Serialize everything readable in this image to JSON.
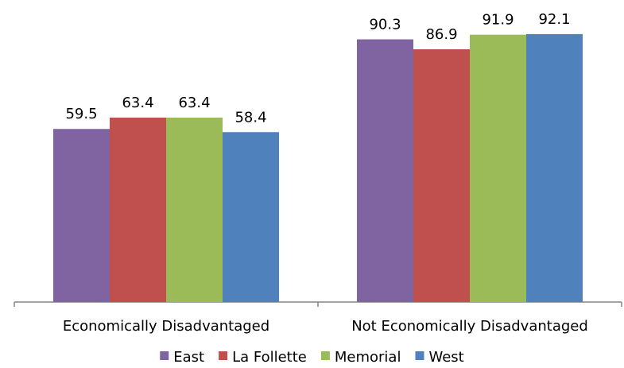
{
  "chart_data": {
    "type": "bar",
    "categories": [
      "Economically Disadvantaged",
      "Not Economically Disadvantaged"
    ],
    "series": [
      {
        "name": "East",
        "color": "#8064A2",
        "values": [
          59.5,
          90.3
        ]
      },
      {
        "name": "La Follette",
        "color": "#C0504D",
        "values": [
          63.4,
          86.9
        ]
      },
      {
        "name": "Memorial",
        "color": "#9BBB59",
        "values": [
          63.4,
          91.9
        ]
      },
      {
        "name": "West",
        "color": "#4F81BD",
        "values": [
          58.4,
          92.1
        ]
      }
    ],
    "ylim": [
      0,
      100
    ],
    "grid": false,
    "legend_position": "bottom"
  }
}
